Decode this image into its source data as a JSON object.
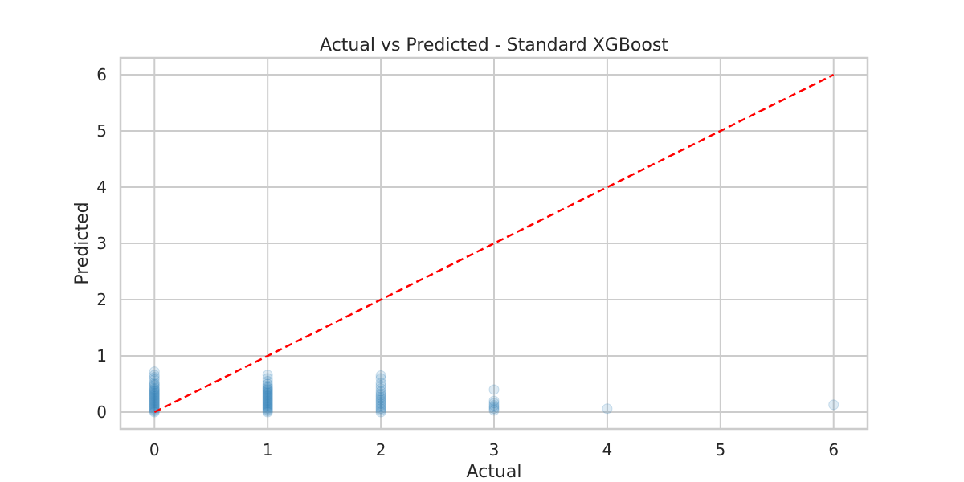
{
  "chart_data": {
    "type": "scatter",
    "title": "Actual vs Predicted - Standard XGBoost",
    "xlabel": "Actual",
    "ylabel": "Predicted",
    "xlim": [
      -0.3,
      6.3
    ],
    "ylim": [
      -0.3,
      6.3
    ],
    "x_ticks": [
      0,
      1,
      2,
      3,
      4,
      5,
      6
    ],
    "y_ticks": [
      0,
      1,
      2,
      3,
      4,
      5,
      6
    ],
    "grid": true,
    "marker_color": "#1f77b4",
    "marker_opacity": 0.15,
    "reference_line": {
      "from": [
        0,
        0
      ],
      "to": [
        6,
        6
      ],
      "color": "#ff0000",
      "style": "dashed"
    },
    "points": [
      {
        "x": 0,
        "y": 0.0
      },
      {
        "x": 0,
        "y": 0.02
      },
      {
        "x": 0,
        "y": 0.04
      },
      {
        "x": 0,
        "y": 0.06
      },
      {
        "x": 0,
        "y": 0.08
      },
      {
        "x": 0,
        "y": 0.1
      },
      {
        "x": 0,
        "y": 0.12
      },
      {
        "x": 0,
        "y": 0.14
      },
      {
        "x": 0,
        "y": 0.16
      },
      {
        "x": 0,
        "y": 0.18
      },
      {
        "x": 0,
        "y": 0.2
      },
      {
        "x": 0,
        "y": 0.22
      },
      {
        "x": 0,
        "y": 0.24
      },
      {
        "x": 0,
        "y": 0.26
      },
      {
        "x": 0,
        "y": 0.28
      },
      {
        "x": 0,
        "y": 0.3
      },
      {
        "x": 0,
        "y": 0.32
      },
      {
        "x": 0,
        "y": 0.34
      },
      {
        "x": 0,
        "y": 0.36
      },
      {
        "x": 0,
        "y": 0.38
      },
      {
        "x": 0,
        "y": 0.4
      },
      {
        "x": 0,
        "y": 0.42
      },
      {
        "x": 0,
        "y": 0.45
      },
      {
        "x": 0,
        "y": 0.48
      },
      {
        "x": 0,
        "y": 0.5
      },
      {
        "x": 0,
        "y": 0.53
      },
      {
        "x": 0,
        "y": 0.58
      },
      {
        "x": 0,
        "y": 0.62
      },
      {
        "x": 0,
        "y": 0.66
      },
      {
        "x": 0,
        "y": 0.72
      },
      {
        "x": 1,
        "y": 0.0
      },
      {
        "x": 1,
        "y": 0.02
      },
      {
        "x": 1,
        "y": 0.04
      },
      {
        "x": 1,
        "y": 0.06
      },
      {
        "x": 1,
        "y": 0.08
      },
      {
        "x": 1,
        "y": 0.1
      },
      {
        "x": 1,
        "y": 0.12
      },
      {
        "x": 1,
        "y": 0.14
      },
      {
        "x": 1,
        "y": 0.16
      },
      {
        "x": 1,
        "y": 0.18
      },
      {
        "x": 1,
        "y": 0.2
      },
      {
        "x": 1,
        "y": 0.22
      },
      {
        "x": 1,
        "y": 0.24
      },
      {
        "x": 1,
        "y": 0.26
      },
      {
        "x": 1,
        "y": 0.28
      },
      {
        "x": 1,
        "y": 0.3
      },
      {
        "x": 1,
        "y": 0.32
      },
      {
        "x": 1,
        "y": 0.34
      },
      {
        "x": 1,
        "y": 0.36
      },
      {
        "x": 1,
        "y": 0.38
      },
      {
        "x": 1,
        "y": 0.4
      },
      {
        "x": 1,
        "y": 0.42
      },
      {
        "x": 1,
        "y": 0.44
      },
      {
        "x": 1,
        "y": 0.47
      },
      {
        "x": 1,
        "y": 0.5
      },
      {
        "x": 1,
        "y": 0.55
      },
      {
        "x": 1,
        "y": 0.6
      },
      {
        "x": 1,
        "y": 0.66
      },
      {
        "x": 2,
        "y": 0.0
      },
      {
        "x": 2,
        "y": 0.03
      },
      {
        "x": 2,
        "y": 0.06
      },
      {
        "x": 2,
        "y": 0.09
      },
      {
        "x": 2,
        "y": 0.12
      },
      {
        "x": 2,
        "y": 0.15
      },
      {
        "x": 2,
        "y": 0.18
      },
      {
        "x": 2,
        "y": 0.21
      },
      {
        "x": 2,
        "y": 0.24
      },
      {
        "x": 2,
        "y": 0.27
      },
      {
        "x": 2,
        "y": 0.3
      },
      {
        "x": 2,
        "y": 0.33
      },
      {
        "x": 2,
        "y": 0.37
      },
      {
        "x": 2,
        "y": 0.42
      },
      {
        "x": 2,
        "y": 0.47
      },
      {
        "x": 2,
        "y": 0.52
      },
      {
        "x": 2,
        "y": 0.6
      },
      {
        "x": 2,
        "y": 0.65
      },
      {
        "x": 3,
        "y": 0.03
      },
      {
        "x": 3,
        "y": 0.06
      },
      {
        "x": 3,
        "y": 0.09
      },
      {
        "x": 3,
        "y": 0.12
      },
      {
        "x": 3,
        "y": 0.16
      },
      {
        "x": 3,
        "y": 0.2
      },
      {
        "x": 3,
        "y": 0.4
      },
      {
        "x": 4,
        "y": 0.06
      },
      {
        "x": 6,
        "y": 0.13
      }
    ]
  }
}
